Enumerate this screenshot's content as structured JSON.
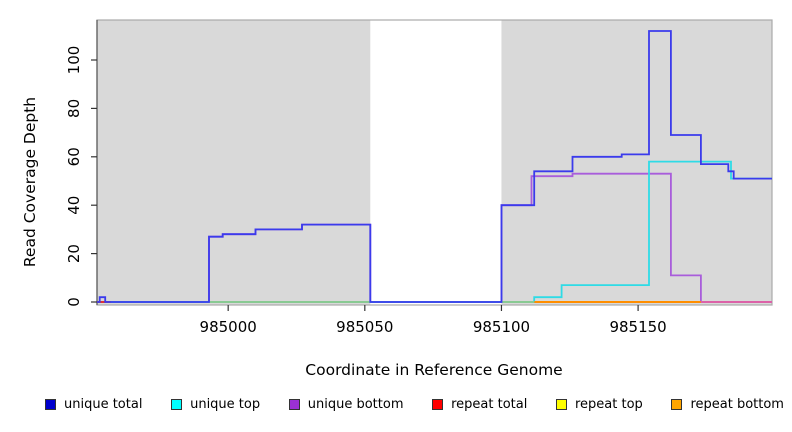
{
  "chart_data": {
    "type": "line",
    "style": "step-after",
    "title": "",
    "xlabel": "Coordinate in Reference Genome",
    "ylabel": "Read Coverage Depth",
    "xlim": [
      984952,
      985199
    ],
    "ylim": [
      0,
      116.5
    ],
    "xticks": [
      985000,
      985050,
      985100,
      985150
    ],
    "yticks": [
      0,
      20,
      40,
      60,
      80,
      100
    ],
    "grid": false,
    "legend_position": "bottom",
    "background_bands": {
      "color": "#d9d9d9",
      "regions": [
        [
          984952,
          985052
        ],
        [
          985100,
          985199
        ]
      ]
    },
    "series": [
      {
        "name": "unique total",
        "color": "#3b3bec",
        "points": [
          [
            984952,
            0
          ],
          [
            984953,
            2
          ],
          [
            984955,
            0
          ],
          [
            984993,
            27
          ],
          [
            984998,
            28
          ],
          [
            985010,
            30
          ],
          [
            985027,
            32
          ],
          [
            985052,
            0
          ],
          [
            985100,
            40
          ],
          [
            985112,
            54
          ],
          [
            985126,
            60
          ],
          [
            985144,
            61
          ],
          [
            985154,
            112
          ],
          [
            985162,
            69
          ],
          [
            985173,
            57
          ],
          [
            985183,
            54
          ],
          [
            985185,
            51
          ],
          [
            985199,
            51
          ]
        ]
      },
      {
        "name": "unique top",
        "color": "#2edbe6",
        "points": [
          [
            984952,
            0
          ],
          [
            985112,
            2
          ],
          [
            985122,
            7
          ],
          [
            985154,
            58
          ],
          [
            985184,
            51
          ],
          [
            985199,
            51
          ]
        ]
      },
      {
        "name": "unique bottom",
        "color": "#a95ddb",
        "points": [
          [
            984952,
            0
          ],
          [
            984993,
            27
          ],
          [
            984998,
            28
          ],
          [
            985010,
            30
          ],
          [
            985027,
            32
          ],
          [
            985052,
            0
          ],
          [
            985100,
            40
          ],
          [
            985111,
            52
          ],
          [
            985126,
            53
          ],
          [
            985162,
            11
          ],
          [
            985173,
            0
          ],
          [
            985199,
            0
          ]
        ]
      },
      {
        "name": "repeat total",
        "color": "#ee2222",
        "points": [
          [
            984952,
            0
          ],
          [
            985199,
            0
          ]
        ]
      },
      {
        "name": "repeat top",
        "color": "#ffff00",
        "points": [
          [
            984952,
            0
          ],
          [
            985199,
            0
          ]
        ]
      },
      {
        "name": "repeat bottom",
        "color": "#ff8c00",
        "points": [
          [
            984952,
            0
          ],
          [
            985199,
            0
          ]
        ]
      }
    ],
    "baseline_overlap_segments": [
      {
        "from": 984952,
        "to": 984957,
        "color": "#ee2222"
      },
      {
        "from": 984993,
        "to": 985052,
        "color": "#8fca8f"
      },
      {
        "from": 985100,
        "to": 985112,
        "color": "#8fca8f"
      },
      {
        "from": 985112,
        "to": 985173,
        "color": "#ff8c00"
      },
      {
        "from": 985173,
        "to": 985199,
        "color": "#e060a8"
      }
    ]
  },
  "axes": {
    "xlabel": "Coordinate in Reference Genome",
    "ylabel": "Read Coverage Depth"
  },
  "legend": {
    "items": [
      {
        "label": "unique total",
        "color": "#0000cd"
      },
      {
        "label": "unique top",
        "color": "#00ffff"
      },
      {
        "label": "unique bottom",
        "color": "#9b30d5"
      },
      {
        "label": "repeat total",
        "color": "#ff0000"
      },
      {
        "label": "repeat top",
        "color": "#ffff00"
      },
      {
        "label": "repeat bottom",
        "color": "#ffa500"
      }
    ]
  }
}
